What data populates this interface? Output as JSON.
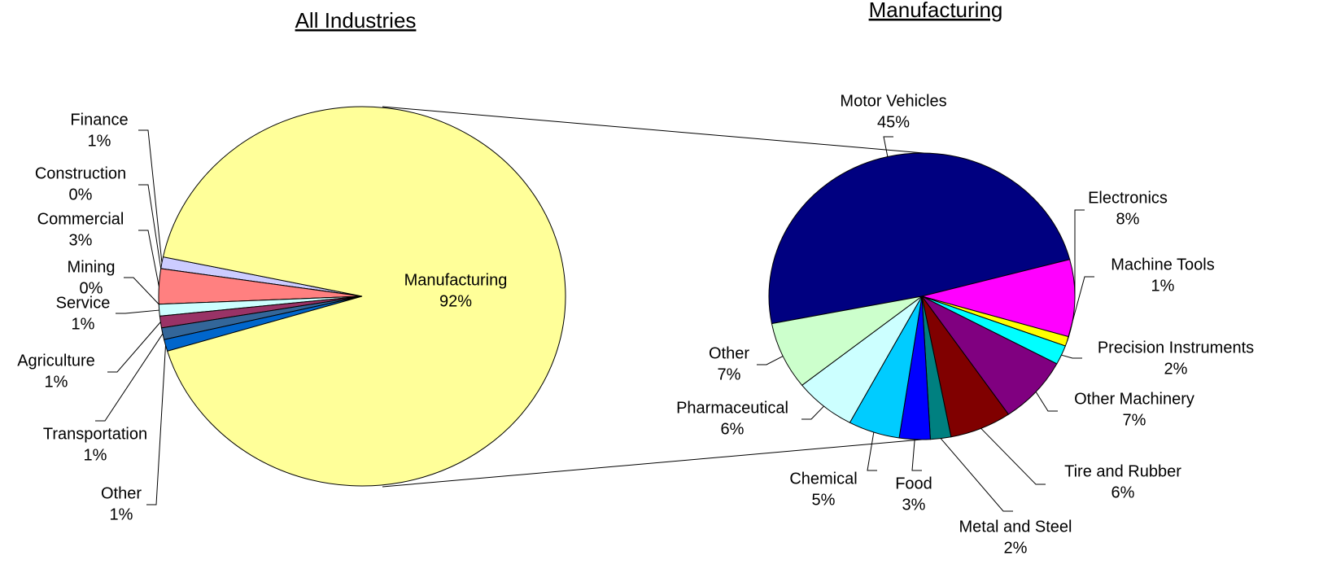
{
  "chart_data": [
    {
      "type": "pie",
      "title": "All Industries",
      "labels": [
        "Finance",
        "Construction",
        "Commercial",
        "Mining",
        "Service",
        "Agriculture",
        "Transportation",
        "Other",
        "Manufacturing"
      ],
      "values": [
        1,
        0,
        3,
        0,
        1,
        1,
        1,
        1,
        92
      ],
      "value_labels": [
        "1%",
        "0%",
        "3%",
        "0%",
        "1%",
        "1%",
        "1%",
        "1%",
        "92%"
      ],
      "colors": [
        "#ccccff",
        "#ffffcc",
        "#ff8080",
        "#ccffcc",
        "#ccffff",
        "#993366",
        "#336699",
        "#0066cc",
        "#ffff99"
      ]
    },
    {
      "type": "pie",
      "title": "Manufacturing",
      "labels": [
        "Motor Vehicles",
        "Electronics",
        "Machine Tools",
        "Precision Instruments",
        "Other Machinery",
        "Tire and Rubber",
        "Metal and Steel",
        "Food",
        "Chemical",
        "Pharmaceutical",
        "Other"
      ],
      "values": [
        45,
        8,
        1,
        2,
        7,
        6,
        2,
        3,
        5,
        6,
        7
      ],
      "value_labels": [
        "45%",
        "8%",
        "1%",
        "2%",
        "7%",
        "6%",
        "2%",
        "3%",
        "5%",
        "6%",
        "7%"
      ],
      "colors": [
        "#000080",
        "#ff00ff",
        "#ffff00",
        "#00ffff",
        "#800080",
        "#800000",
        "#008080",
        "#0000ff",
        "#00ccff",
        "#ccffff",
        "#ccffcc"
      ]
    }
  ]
}
